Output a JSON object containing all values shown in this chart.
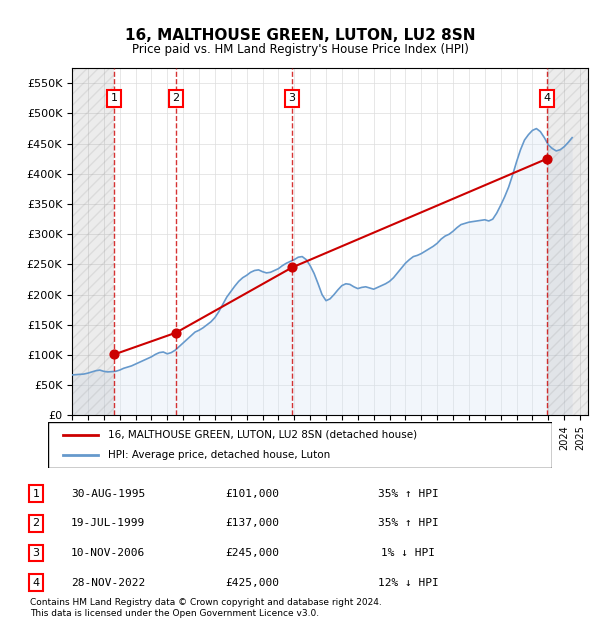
{
  "title": "16, MALTHOUSE GREEN, LUTON, LU2 8SN",
  "subtitle": "Price paid vs. HM Land Registry's House Price Index (HPI)",
  "ylabel": "",
  "ylim": [
    0,
    575000
  ],
  "yticks": [
    0,
    50000,
    100000,
    150000,
    200000,
    250000,
    300000,
    350000,
    400000,
    450000,
    500000,
    550000
  ],
  "xlim_start": 1993.0,
  "xlim_end": 2025.5,
  "sale_color": "#cc0000",
  "hpi_color": "#6699cc",
  "hpi_fill_color": "#d6e4f5",
  "transaction_color": "#cc0000",
  "vline_color": "#cc0000",
  "hatching_color": "#cccccc",
  "legend_sale_label": "16, MALTHOUSE GREEN, LUTON, LU2 8SN (detached house)",
  "legend_hpi_label": "HPI: Average price, detached house, Luton",
  "transactions": [
    {
      "num": 1,
      "date_dec": 1995.66,
      "price": 101000,
      "label": "1",
      "date_str": "30-AUG-1995",
      "price_str": "£101,000",
      "pct": "35% ↑ HPI"
    },
    {
      "num": 2,
      "date_dec": 1999.55,
      "price": 137000,
      "label": "2",
      "date_str": "19-JUL-1999",
      "price_str": "£137,000",
      "pct": "35% ↑ HPI"
    },
    {
      "num": 3,
      "date_dec": 2006.86,
      "price": 245000,
      "label": "3",
      "date_str": "10-NOV-2006",
      "price_str": "£245,000",
      "pct": "1% ↓ HPI"
    },
    {
      "num": 4,
      "date_dec": 2022.91,
      "price": 425000,
      "label": "4",
      "date_str": "28-NOV-2022",
      "price_str": "£425,000",
      "pct": "12% ↓ HPI"
    }
  ],
  "footer_line1": "Contains HM Land Registry data © Crown copyright and database right 2024.",
  "footer_line2": "This data is licensed under the Open Government Licence v3.0.",
  "hpi_data": {
    "years": [
      1993.0,
      1993.25,
      1993.5,
      1993.75,
      1994.0,
      1994.25,
      1994.5,
      1994.75,
      1995.0,
      1995.25,
      1995.5,
      1995.75,
      1996.0,
      1996.25,
      1996.5,
      1996.75,
      1997.0,
      1997.25,
      1997.5,
      1997.75,
      1998.0,
      1998.25,
      1998.5,
      1998.75,
      1999.0,
      1999.25,
      1999.5,
      1999.75,
      2000.0,
      2000.25,
      2000.5,
      2000.75,
      2001.0,
      2001.25,
      2001.5,
      2001.75,
      2002.0,
      2002.25,
      2002.5,
      2002.75,
      2003.0,
      2003.25,
      2003.5,
      2003.75,
      2004.0,
      2004.25,
      2004.5,
      2004.75,
      2005.0,
      2005.25,
      2005.5,
      2005.75,
      2006.0,
      2006.25,
      2006.5,
      2006.75,
      2007.0,
      2007.25,
      2007.5,
      2007.75,
      2008.0,
      2008.25,
      2008.5,
      2008.75,
      2009.0,
      2009.25,
      2009.5,
      2009.75,
      2010.0,
      2010.25,
      2010.5,
      2010.75,
      2011.0,
      2011.25,
      2011.5,
      2011.75,
      2012.0,
      2012.25,
      2012.5,
      2012.75,
      2013.0,
      2013.25,
      2013.5,
      2013.75,
      2014.0,
      2014.25,
      2014.5,
      2014.75,
      2015.0,
      2015.25,
      2015.5,
      2015.75,
      2016.0,
      2016.25,
      2016.5,
      2016.75,
      2017.0,
      2017.25,
      2017.5,
      2017.75,
      2018.0,
      2018.25,
      2018.5,
      2018.75,
      2019.0,
      2019.25,
      2019.5,
      2019.75,
      2020.0,
      2020.25,
      2020.5,
      2020.75,
      2021.0,
      2021.25,
      2021.5,
      2021.75,
      2022.0,
      2022.25,
      2022.5,
      2022.75,
      2023.0,
      2023.25,
      2023.5,
      2023.75,
      2024.0,
      2024.25,
      2024.5
    ],
    "values": [
      67000,
      67500,
      68000,
      68500,
      70000,
      72000,
      74000,
      75000,
      73000,
      72000,
      72500,
      73000,
      75000,
      78000,
      80000,
      82000,
      85000,
      88000,
      91000,
      94000,
      97000,
      101000,
      104000,
      105000,
      102000,
      104000,
      108000,
      114000,
      120000,
      126000,
      132000,
      138000,
      141000,
      145000,
      150000,
      155000,
      162000,
      172000,
      184000,
      196000,
      205000,
      214000,
      222000,
      228000,
      232000,
      237000,
      240000,
      241000,
      238000,
      236000,
      237000,
      240000,
      243000,
      248000,
      252000,
      255000,
      258000,
      262000,
      263000,
      258000,
      248000,
      235000,
      218000,
      200000,
      190000,
      193000,
      200000,
      208000,
      215000,
      218000,
      217000,
      213000,
      210000,
      212000,
      213000,
      211000,
      209000,
      212000,
      215000,
      218000,
      222000,
      228000,
      236000,
      244000,
      252000,
      258000,
      263000,
      265000,
      268000,
      272000,
      276000,
      280000,
      285000,
      292000,
      297000,
      300000,
      305000,
      311000,
      316000,
      318000,
      320000,
      321000,
      322000,
      323000,
      324000,
      322000,
      325000,
      335000,
      348000,
      362000,
      378000,
      398000,
      420000,
      440000,
      456000,
      465000,
      472000,
      475000,
      470000,
      460000,
      448000,
      442000,
      438000,
      440000,
      445000,
      452000,
      460000
    ]
  }
}
